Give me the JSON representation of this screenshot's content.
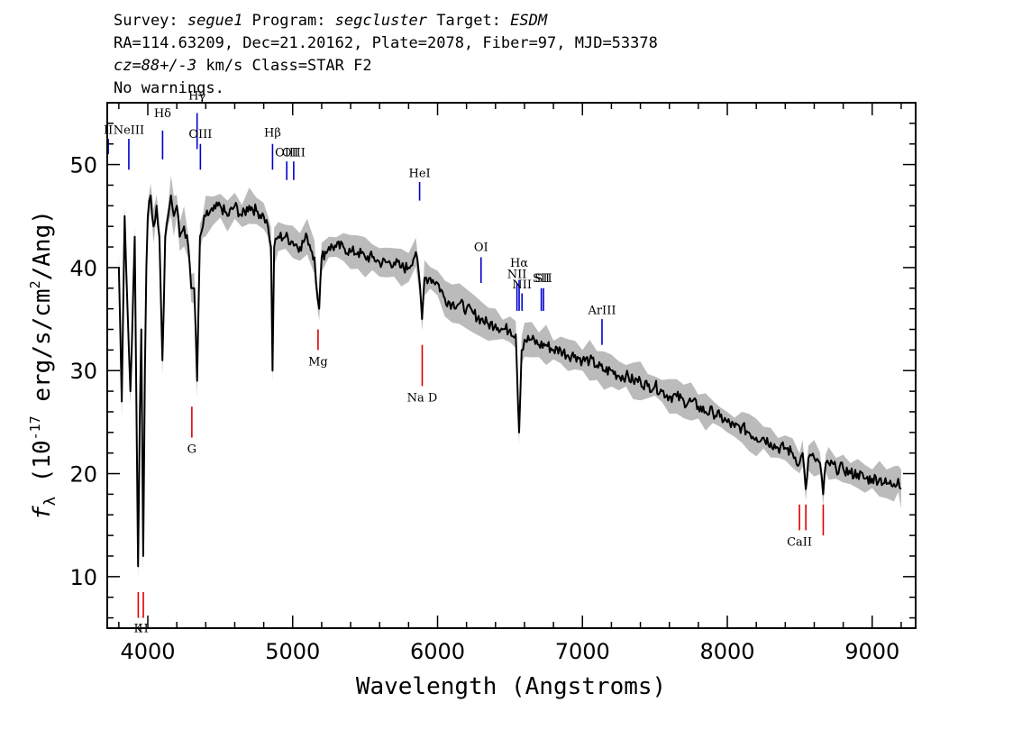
{
  "header": {
    "line1": {
      "survey_label": "Survey: ",
      "survey": "segue1",
      "program_label": " Program: ",
      "program": "segcluster",
      "target_label": " Target: ",
      "target": "ESDM"
    },
    "line2": "RA=114.63209, Dec=21.20162, Plate=2078, Fiber=97, MJD=53378",
    "line3": {
      "cz_label": "cz",
      "cz_value": "=88+/-3",
      "rest": " km/s Class=STAR F2"
    },
    "line4": "No warnings."
  },
  "chart_data": {
    "type": "line",
    "xlabel": "Wavelength (Angstroms)",
    "ylabel": "fλ (10⁻¹⁷ erg/s/cm²/Ang)",
    "xlim": [
      3720,
      9300
    ],
    "ylim": [
      5,
      56
    ],
    "x_ticks": [
      4000,
      5000,
      6000,
      7000,
      8000,
      9000
    ],
    "y_ticks": [
      10,
      20,
      30,
      40,
      50
    ],
    "grid": false,
    "colors": {
      "flux": "#000000",
      "error_band": "#bbbbbb",
      "emission_line": "#0000cc",
      "absorption_line": "#dd0000"
    },
    "spectrum": [
      [
        3800,
        40
      ],
      [
        3820,
        27
      ],
      [
        3840,
        45
      ],
      [
        3860,
        36
      ],
      [
        3880,
        28
      ],
      [
        3900,
        38
      ],
      [
        3910,
        43
      ],
      [
        3920,
        28
      ],
      [
        3933,
        11
      ],
      [
        3945,
        26
      ],
      [
        3955,
        34
      ],
      [
        3968,
        12
      ],
      [
        3980,
        30
      ],
      [
        3990,
        40
      ],
      [
        4000,
        45
      ],
      [
        4020,
        47
      ],
      [
        4040,
        44
      ],
      [
        4060,
        46
      ],
      [
        4080,
        43
      ],
      [
        4101,
        31
      ],
      [
        4120,
        43
      ],
      [
        4140,
        45
      ],
      [
        4160,
        47
      ],
      [
        4180,
        45
      ],
      [
        4200,
        46
      ],
      [
        4220,
        43
      ],
      [
        4250,
        44
      ],
      [
        4280,
        42
      ],
      [
        4300,
        38
      ],
      [
        4320,
        38
      ],
      [
        4340,
        29
      ],
      [
        4360,
        43
      ],
      [
        4380,
        44
      ],
      [
        4400,
        45
      ],
      [
        4450,
        45.5
      ],
      [
        4500,
        46
      ],
      [
        4550,
        45
      ],
      [
        4600,
        46
      ],
      [
        4650,
        45
      ],
      [
        4700,
        46
      ],
      [
        4750,
        45.5
      ],
      [
        4800,
        45
      ],
      [
        4830,
        44
      ],
      [
        4850,
        42
      ],
      [
        4861,
        30
      ],
      [
        4872,
        42
      ],
      [
        4900,
        43
      ],
      [
        4950,
        43
      ],
      [
        5000,
        42.5
      ],
      [
        5050,
        42
      ],
      [
        5100,
        43
      ],
      [
        5150,
        41
      ],
      [
        5172,
        37
      ],
      [
        5183,
        36
      ],
      [
        5200,
        41
      ],
      [
        5250,
        42
      ],
      [
        5300,
        42
      ],
      [
        5350,
        42
      ],
      [
        5400,
        41.5
      ],
      [
        5450,
        41.5
      ],
      [
        5500,
        41
      ],
      [
        5550,
        41
      ],
      [
        5600,
        40.5
      ],
      [
        5650,
        40.5
      ],
      [
        5700,
        40.5
      ],
      [
        5750,
        40
      ],
      [
        5800,
        40
      ],
      [
        5850,
        41.5
      ],
      [
        5880,
        38
      ],
      [
        5893,
        35
      ],
      [
        5910,
        39
      ],
      [
        5950,
        39
      ],
      [
        6000,
        38.5
      ],
      [
        6050,
        37
      ],
      [
        6100,
        36.5
      ],
      [
        6150,
        36.5
      ],
      [
        6200,
        36
      ],
      [
        6250,
        35.5
      ],
      [
        6300,
        35
      ],
      [
        6350,
        34.5
      ],
      [
        6400,
        34.5
      ],
      [
        6450,
        34
      ],
      [
        6500,
        34
      ],
      [
        6540,
        33.5
      ],
      [
        6563,
        24
      ],
      [
        6580,
        32
      ],
      [
        6600,
        33
      ],
      [
        6650,
        33
      ],
      [
        6700,
        32.5
      ],
      [
        6750,
        32.5
      ],
      [
        6800,
        32
      ],
      [
        6850,
        32
      ],
      [
        6900,
        31.5
      ],
      [
        6950,
        31.5
      ],
      [
        7000,
        31
      ],
      [
        7050,
        31
      ],
      [
        7100,
        30.5
      ],
      [
        7150,
        30
      ],
      [
        7200,
        30
      ],
      [
        7250,
        29.5
      ],
      [
        7300,
        29.5
      ],
      [
        7350,
        29
      ],
      [
        7400,
        29
      ],
      [
        7450,
        28.5
      ],
      [
        7500,
        28.5
      ],
      [
        7550,
        28
      ],
      [
        7600,
        27.5
      ],
      [
        7650,
        27.5
      ],
      [
        7700,
        27
      ],
      [
        7750,
        27
      ],
      [
        7800,
        26.5
      ],
      [
        7850,
        26
      ],
      [
        7900,
        26
      ],
      [
        7950,
        25.5
      ],
      [
        8000,
        25
      ],
      [
        8050,
        24.5
      ],
      [
        8100,
        24.5
      ],
      [
        8150,
        24
      ],
      [
        8200,
        23.5
      ],
      [
        8250,
        23.5
      ],
      [
        8300,
        23
      ],
      [
        8350,
        22.5
      ],
      [
        8400,
        22.5
      ],
      [
        8450,
        22
      ],
      [
        8498,
        21
      ],
      [
        8520,
        22
      ],
      [
        8542,
        18.5
      ],
      [
        8560,
        21.5
      ],
      [
        8600,
        21.5
      ],
      [
        8640,
        21
      ],
      [
        8662,
        18
      ],
      [
        8680,
        21
      ],
      [
        8700,
        21
      ],
      [
        8750,
        20.5
      ],
      [
        8800,
        20.5
      ],
      [
        8850,
        20
      ],
      [
        8900,
        20
      ],
      [
        8950,
        19.5
      ],
      [
        9000,
        19.5
      ],
      [
        9050,
        19.5
      ],
      [
        9100,
        19
      ],
      [
        9150,
        19
      ],
      [
        9180,
        19.5
      ],
      [
        9200,
        18.5
      ]
    ],
    "emission_lines": [
      {
        "label": "II",
        "x": 3727,
        "y_line": [
          51.0,
          52.5
        ],
        "y_label": 53.0
      },
      {
        "label": "NeIII",
        "x": 3869,
        "y_line": [
          49.5,
          52.5
        ],
        "y_label": 53.0
      },
      {
        "label": "Hδ",
        "x": 4102,
        "y_line": [
          50.5,
          53.3
        ],
        "y_label": 54.6
      },
      {
        "label": "Hγ",
        "x": 4340,
        "y_line": [
          51.5,
          55.0
        ],
        "y_label": 56.3
      },
      {
        "label": "OIII",
        "x": 4363,
        "y_line": [
          49.5,
          52.0
        ],
        "y_label": 52.6
      },
      {
        "label": "Hβ",
        "x": 4861,
        "y_line": [
          49.5,
          52.0
        ],
        "y_label": 52.7
      },
      {
        "label": "OIII",
        "x": 4959,
        "y_line": [
          48.5,
          50.3
        ],
        "y_label": 50.8
      },
      {
        "label": "OIII",
        "x": 5007,
        "y_line": [
          48.5,
          50.3
        ],
        "y_label": 50.8
      },
      {
        "label": "HeI",
        "x": 5876,
        "y_line": [
          46.5,
          48.3
        ],
        "y_label": 48.8
      },
      {
        "label": "OI",
        "x": 6300,
        "y_line": [
          38.5,
          41.0
        ],
        "y_label": 41.6
      },
      {
        "label": "NII",
        "x": 6548,
        "y_line": [
          35.8,
          38.5
        ],
        "y_label": 39.0
      },
      {
        "label": "Hα",
        "x": 6563,
        "y_line": [
          35.8,
          38.8
        ],
        "y_label": 40.1
      },
      {
        "label": "NII",
        "x": 6583,
        "y_line": [
          35.8,
          37.5
        ],
        "y_label": 38.0
      },
      {
        "label": "SII",
        "x": 6716,
        "y_line": [
          35.8,
          38.0
        ],
        "y_label": 38.6
      },
      {
        "label": "SII",
        "x": 6731,
        "y_line": [
          35.8,
          38.0
        ],
        "y_label": 38.6
      },
      {
        "label": "ArIII",
        "x": 7135,
        "y_line": [
          32.5,
          35.0
        ],
        "y_label": 35.5
      }
    ],
    "absorption_lines": [
      {
        "label": "K",
        "x": 3934,
        "y_line": [
          6.0,
          8.5
        ],
        "y_label": 4.6
      },
      {
        "label": "H",
        "x": 3969,
        "y_line": [
          6.0,
          8.5
        ],
        "y_label": 4.6
      },
      {
        "label": "G",
        "x": 4304,
        "y_line": [
          23.5,
          26.5
        ],
        "y_label": 22.0
      },
      {
        "label": "Mg",
        "x": 5175,
        "y_line": [
          32.0,
          34.0
        ],
        "y_label": 30.5
      },
      {
        "label": "Na D",
        "x": 5894,
        "y_line": [
          28.5,
          32.5
        ],
        "y_label": 27.0
      },
      {
        "label": "CaII",
        "x": 8498,
        "y_line": [
          14.5,
          17.0
        ],
        "y_label": 13.0
      },
      {
        "label": "CaII",
        "x": 8542,
        "y_line": [
          14.5,
          17.0
        ],
        "y_label": null
      },
      {
        "label": "CaII",
        "x": 8662,
        "y_line": [
          14.0,
          17.0
        ],
        "y_label": null
      }
    ]
  }
}
